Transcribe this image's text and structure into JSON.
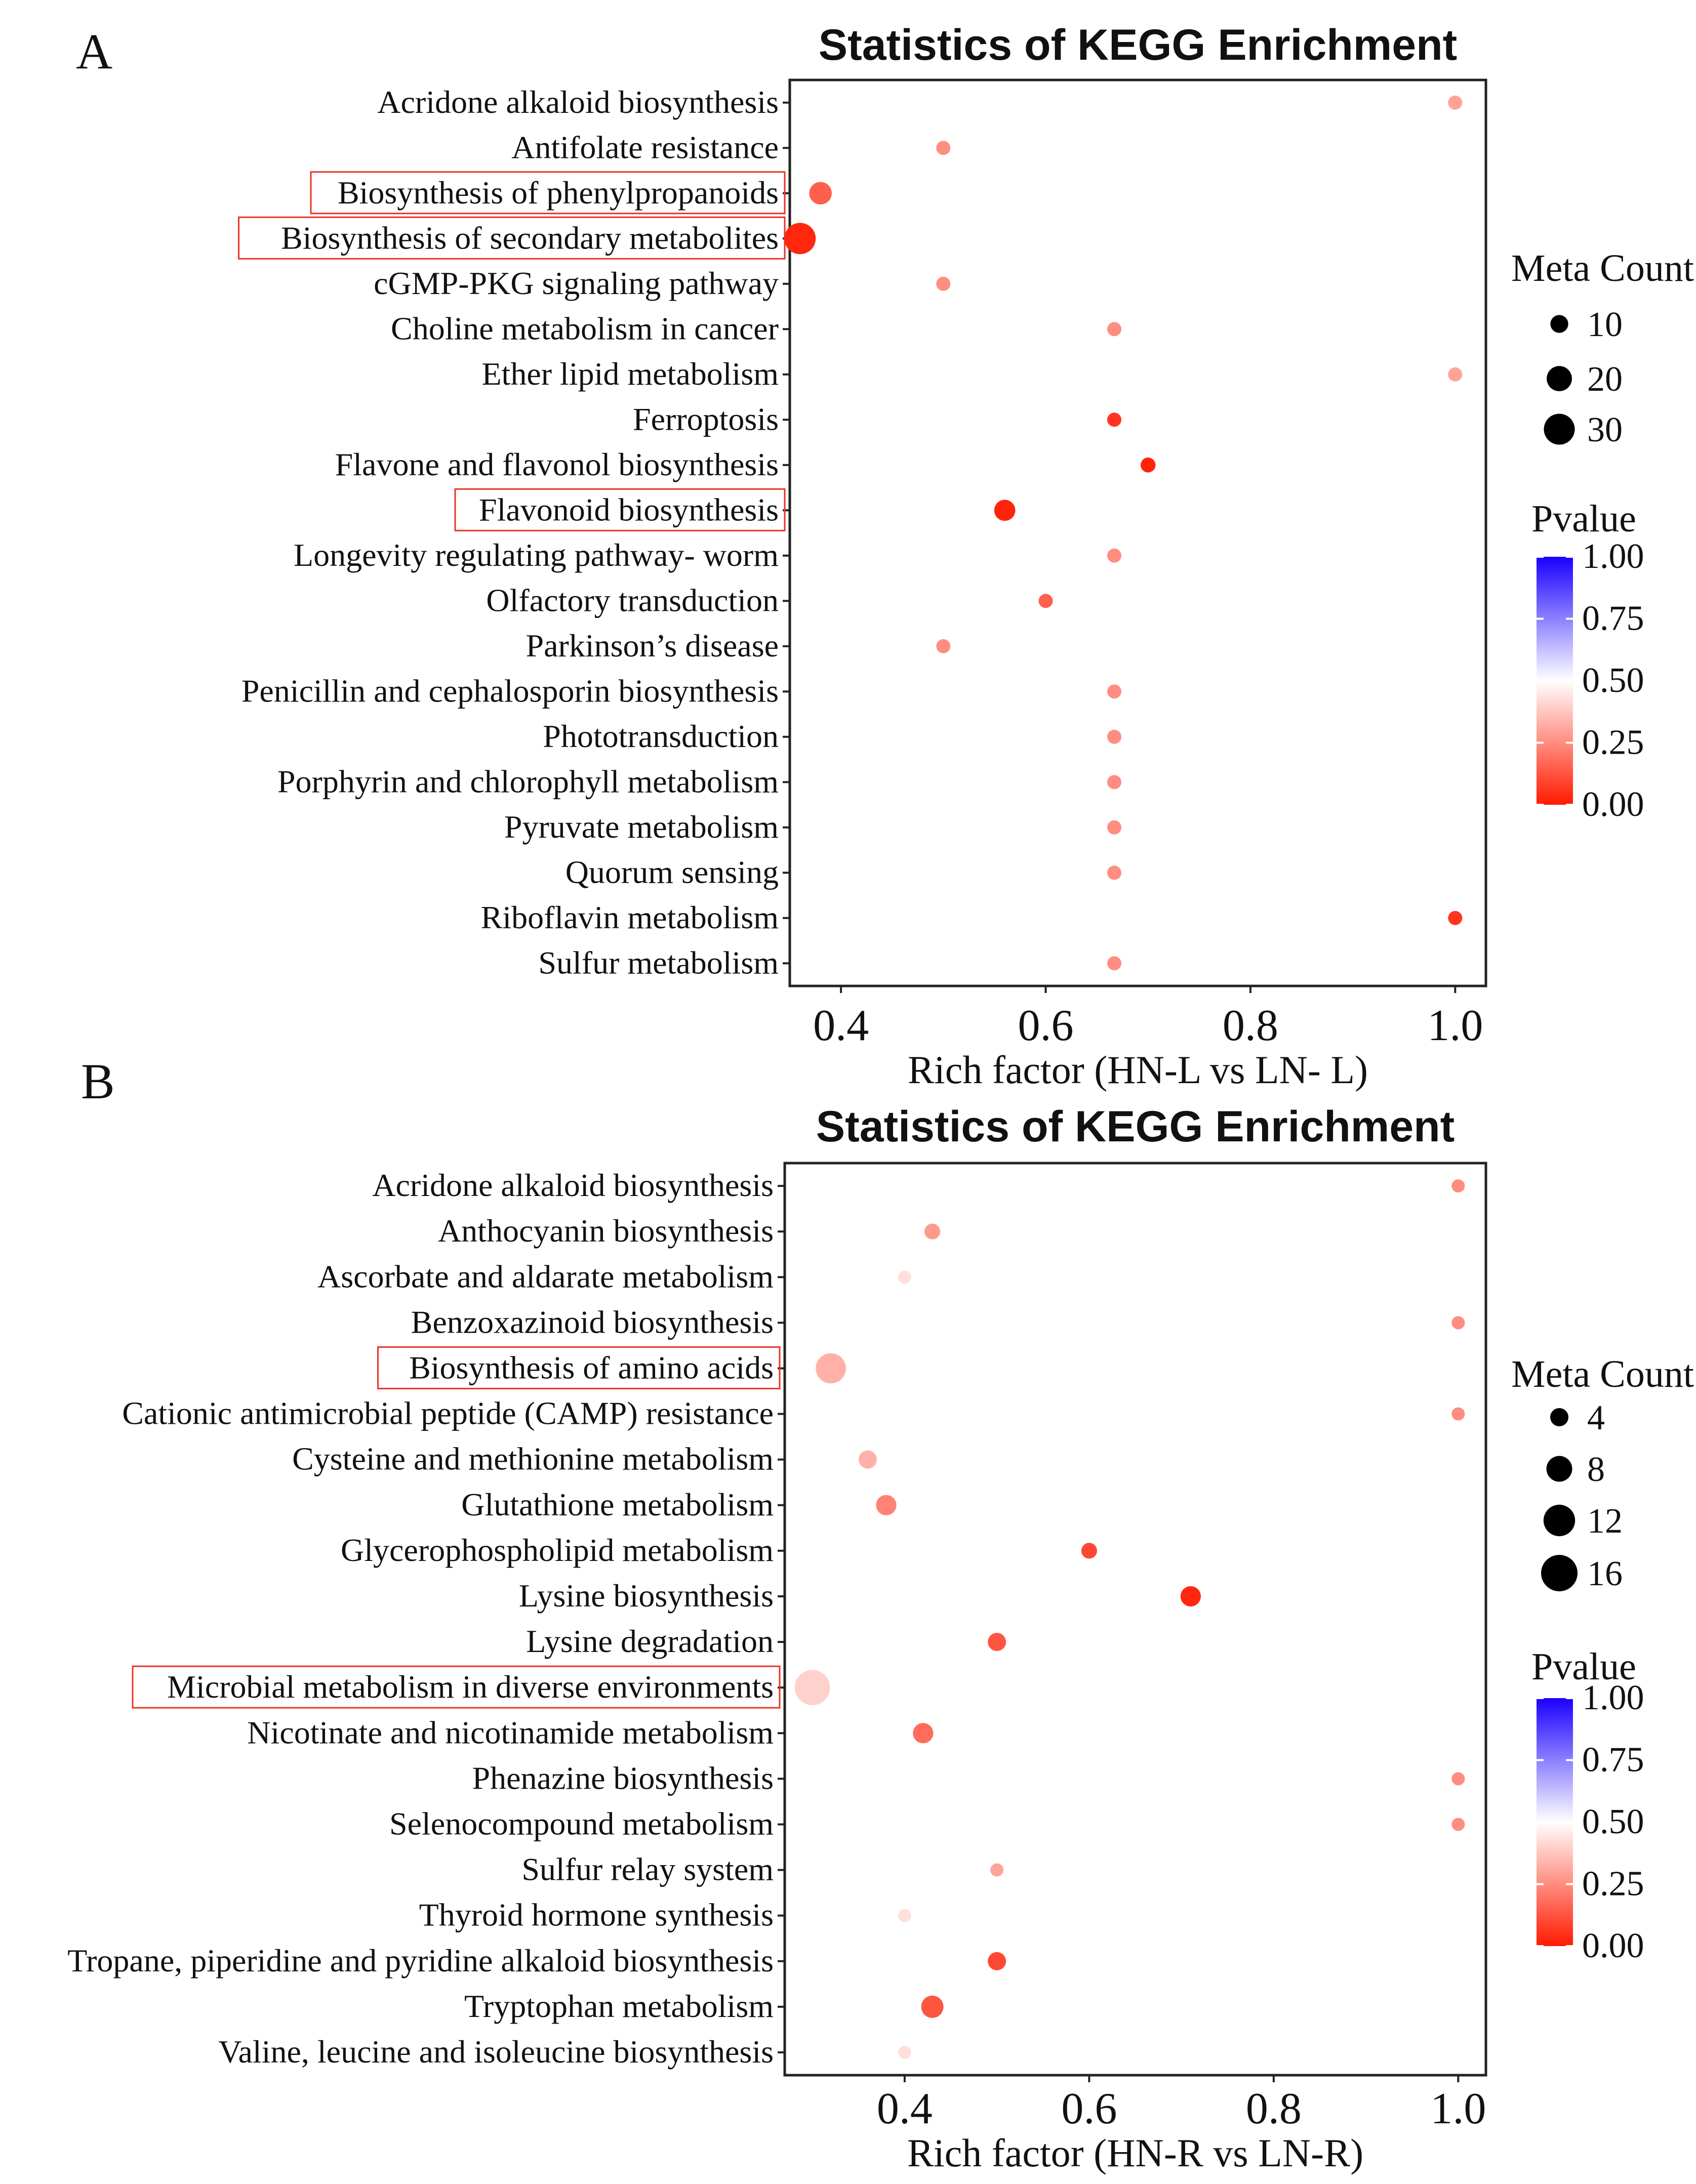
{
  "chart_data": [
    {
      "panel_label": "A",
      "type": "scatter",
      "title": "Statistics of KEGG Enrichment",
      "xlabel": "Rich factor (HN-L vs LN- L)",
      "ylabel": "",
      "xlim": [
        0.35,
        1.03
      ],
      "xticks": [
        "0.4",
        "0.6",
        "0.8",
        "1.0"
      ],
      "grid": false,
      "legend_placement": "right",
      "size_legend": {
        "title": "Meta Count",
        "entries": [
          {
            "label": "10",
            "value": 10
          },
          {
            "label": "20",
            "value": 20
          },
          {
            "label": "30",
            "value": 30
          }
        ]
      },
      "color_legend": {
        "title": "Pvalue",
        "ticks": [
          "1.00",
          "0.75",
          "0.50",
          "0.25",
          "0.00"
        ],
        "low_color": "#ff1a00",
        "mid_color": "#ffffff",
        "high_color": "#1a00ff"
      },
      "highlighted": [
        "Flavonoid biosynthesis",
        "Biosynthesis of secondary metabolites",
        "Biosynthesis of phenylpropanoids"
      ],
      "points": [
        {
          "category": "Sulfur metabolism",
          "x": 0.667,
          "count": 2,
          "pvalue": 0.25
        },
        {
          "category": "Riboflavin metabolism",
          "x": 1.0,
          "count": 3,
          "pvalue": 0.06
        },
        {
          "category": "Quorum sensing",
          "x": 0.667,
          "count": 2,
          "pvalue": 0.25
        },
        {
          "category": "Pyruvate metabolism",
          "x": 0.667,
          "count": 2,
          "pvalue": 0.25
        },
        {
          "category": "Porphyrin and chlorophyll metabolism",
          "x": 0.667,
          "count": 2,
          "pvalue": 0.25
        },
        {
          "category": "Phototransduction",
          "x": 0.667,
          "count": 2,
          "pvalue": 0.25
        },
        {
          "category": "Penicillin and cephalosporin biosynthesis",
          "x": 0.667,
          "count": 2,
          "pvalue": 0.25
        },
        {
          "category": "Parkinson’s disease",
          "x": 0.5,
          "count": 3,
          "pvalue": 0.25
        },
        {
          "category": "Olfactory transduction",
          "x": 0.6,
          "count": 4,
          "pvalue": 0.15
        },
        {
          "category": "Longevity regulating pathway- worm",
          "x": 0.667,
          "count": 2,
          "pvalue": 0.25
        },
        {
          "category": "Flavonoid biosynthesis",
          "x": 0.56,
          "count": 14,
          "pvalue": 0.02
        },
        {
          "category": "Flavone and flavonol biosynthesis",
          "x": 0.7,
          "count": 7,
          "pvalue": 0.02
        },
        {
          "category": "Ferroptosis",
          "x": 0.667,
          "count": 4,
          "pvalue": 0.06
        },
        {
          "category": "Ether lipid metabolism",
          "x": 1.0,
          "count": 1,
          "pvalue": 0.3
        },
        {
          "category": "Choline metabolism in cancer",
          "x": 0.667,
          "count": 2,
          "pvalue": 0.25
        },
        {
          "category": "cGMP-PKG signaling pathway",
          "x": 0.5,
          "count": 3,
          "pvalue": 0.25
        },
        {
          "category": "Biosynthesis of secondary metabolites",
          "x": 0.36,
          "count": 31,
          "pvalue": 0.03
        },
        {
          "category": "Biosynthesis of phenylpropanoids",
          "x": 0.38,
          "count": 16,
          "pvalue": 0.15
        },
        {
          "category": "Antifolate resistance",
          "x": 0.5,
          "count": 3,
          "pvalue": 0.25
        },
        {
          "category": "Acridone alkaloid biosynthesis",
          "x": 1.0,
          "count": 1,
          "pvalue": 0.3
        }
      ]
    },
    {
      "panel_label": "B",
      "type": "scatter",
      "title": "Statistics of KEGG Enrichment",
      "xlabel": "Rich factor (HN-R vs LN-R)",
      "ylabel": "",
      "xlim": [
        0.27,
        1.03
      ],
      "xticks": [
        "0.4",
        "0.6",
        "0.8",
        "1.0"
      ],
      "grid": false,
      "legend_placement": "right",
      "size_legend": {
        "title": "Meta Count",
        "entries": [
          {
            "label": "4",
            "value": 4
          },
          {
            "label": "8",
            "value": 8
          },
          {
            "label": "12",
            "value": 12
          },
          {
            "label": "16",
            "value": 16
          }
        ]
      },
      "color_legend": {
        "title": "Pvalue",
        "ticks": [
          "1.00",
          "0.75",
          "0.50",
          "0.25",
          "0.00"
        ],
        "low_color": "#ff1a00",
        "mid_color": "#ffffff",
        "high_color": "#1a00ff"
      },
      "highlighted": [
        "Microbial metabolism in diverse environments",
        "Biosynthesis of amino acids"
      ],
      "points": [
        {
          "category": "Valine, leucine and isoleucine biosynthesis",
          "x": 0.4,
          "count": 2,
          "pvalue": 0.43
        },
        {
          "category": "Tryptophan metabolism",
          "x": 0.43,
          "count": 6,
          "pvalue": 0.13
        },
        {
          "category": "Tropane, piperidine and pyridine alkaloid biosynthesis",
          "x": 0.5,
          "count": 4,
          "pvalue": 0.1
        },
        {
          "category": "Thyroid hormone synthesis",
          "x": 0.4,
          "count": 2,
          "pvalue": 0.43
        },
        {
          "category": "Sulfur relay system",
          "x": 0.5,
          "count": 2,
          "pvalue": 0.3
        },
        {
          "category": "Selenocompound metabolism",
          "x": 1.0,
          "count": 1,
          "pvalue": 0.25
        },
        {
          "category": "Phenazine biosynthesis",
          "x": 1.0,
          "count": 1,
          "pvalue": 0.25
        },
        {
          "category": "Nicotinate and nicotinamide metabolism",
          "x": 0.42,
          "count": 5,
          "pvalue": 0.18
        },
        {
          "category": "Microbial metabolism in diverse environments",
          "x": 0.3,
          "count": 15,
          "pvalue": 0.4
        },
        {
          "category": "Lysine degradation",
          "x": 0.5,
          "count": 4,
          "pvalue": 0.13
        },
        {
          "category": "Lysine biosynthesis",
          "x": 0.71,
          "count": 5,
          "pvalue": 0.03
        },
        {
          "category": "Glycerophospholipid metabolism",
          "x": 0.6,
          "count": 3,
          "pvalue": 0.1
        },
        {
          "category": "Glutathione metabolism",
          "x": 0.38,
          "count": 5,
          "pvalue": 0.23
        },
        {
          "category": "Cysteine and methionine metabolism",
          "x": 0.36,
          "count": 4,
          "pvalue": 0.33
        },
        {
          "category": "Cationic antimicrobial peptide (CAMP) resistance",
          "x": 1.0,
          "count": 1,
          "pvalue": 0.25
        },
        {
          "category": "Biosynthesis of amino acids",
          "x": 0.32,
          "count": 11,
          "pvalue": 0.33
        },
        {
          "category": "Benzoxazinoid biosynthesis",
          "x": 1.0,
          "count": 1,
          "pvalue": 0.25
        },
        {
          "category": "Ascorbate and aldarate metabolism",
          "x": 0.4,
          "count": 2,
          "pvalue": 0.43
        },
        {
          "category": "Anthocyanin biosynthesis",
          "x": 0.43,
          "count": 3,
          "pvalue": 0.28
        },
        {
          "category": "Acridone alkaloid biosynthesis",
          "x": 1.0,
          "count": 1,
          "pvalue": 0.25
        }
      ]
    }
  ]
}
